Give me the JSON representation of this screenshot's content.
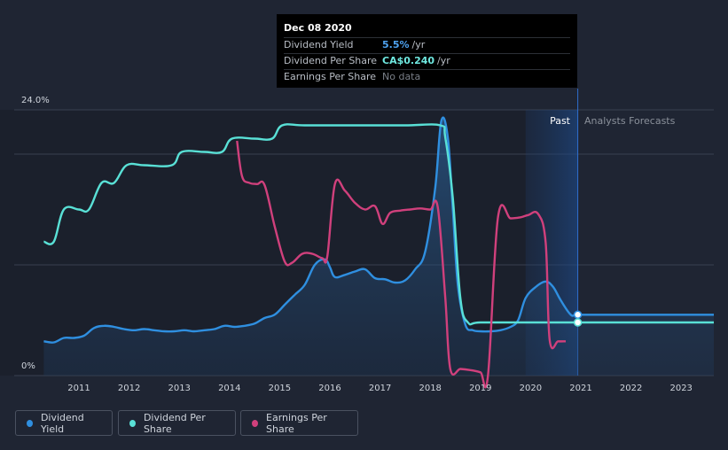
{
  "tooltip": {
    "date": "Dec 08 2020",
    "rows": [
      {
        "label": "Dividend Yield",
        "value": "5.5%",
        "unit": "/yr",
        "color": "#4fa3f0"
      },
      {
        "label": "Dividend Per Share",
        "value": "CA$0.240",
        "unit": "/yr",
        "color": "#6fe8e0"
      },
      {
        "label": "Earnings Per Share",
        "value": "No data",
        "unit": "",
        "color": "#7a7f88"
      }
    ]
  },
  "legend": [
    {
      "label": "Dividend Yield",
      "color": "#2f8fe0"
    },
    {
      "label": "Dividend Per Share",
      "color": "#59e0d6"
    },
    {
      "label": "Earnings Per Share",
      "color": "#d0407c"
    }
  ],
  "chart_data": {
    "type": "line",
    "ylim_label_top": "24.0%",
    "ylim_label_bottom": "0%",
    "ylim": [
      0,
      24
    ],
    "xlim": [
      2010.2,
      2023.65
    ],
    "x_ticks": [
      "2011",
      "2012",
      "2013",
      "2014",
      "2015",
      "2016",
      "2017",
      "2018",
      "2019",
      "2020",
      "2021",
      "2022",
      "2023"
    ],
    "past_label": "Past",
    "forecast_label": "Analysts Forecasts",
    "past_boundary": 2020.94,
    "past_shade_start": 2019.9,
    "grid": true,
    "legend_position": "bottom-left",
    "series": [
      {
        "name": "Dividend Yield",
        "color": "#2f8fe0",
        "area": true,
        "points": [
          [
            2010.3,
            3.1
          ],
          [
            2010.5,
            3.0
          ],
          [
            2010.7,
            3.4
          ],
          [
            2010.9,
            3.4
          ],
          [
            2011.1,
            3.6
          ],
          [
            2011.3,
            4.3
          ],
          [
            2011.5,
            4.5
          ],
          [
            2011.7,
            4.4
          ],
          [
            2011.9,
            4.2
          ],
          [
            2012.1,
            4.1
          ],
          [
            2012.3,
            4.2
          ],
          [
            2012.5,
            4.1
          ],
          [
            2012.7,
            4.0
          ],
          [
            2012.9,
            4.0
          ],
          [
            2013.1,
            4.1
          ],
          [
            2013.3,
            4.0
          ],
          [
            2013.5,
            4.1
          ],
          [
            2013.7,
            4.2
          ],
          [
            2013.9,
            4.5
          ],
          [
            2014.1,
            4.4
          ],
          [
            2014.3,
            4.5
          ],
          [
            2014.5,
            4.7
          ],
          [
            2014.7,
            5.2
          ],
          [
            2014.9,
            5.5
          ],
          [
            2015.1,
            6.4
          ],
          [
            2015.3,
            7.3
          ],
          [
            2015.5,
            8.2
          ],
          [
            2015.7,
            10.0
          ],
          [
            2015.9,
            10.5
          ],
          [
            2016.0,
            9.8
          ],
          [
            2016.1,
            8.9
          ],
          [
            2016.3,
            9.1
          ],
          [
            2016.5,
            9.4
          ],
          [
            2016.7,
            9.6
          ],
          [
            2016.9,
            8.8
          ],
          [
            2017.1,
            8.7
          ],
          [
            2017.3,
            8.4
          ],
          [
            2017.5,
            8.6
          ],
          [
            2017.7,
            9.6
          ],
          [
            2017.9,
            11.2
          ],
          [
            2018.1,
            17.0
          ],
          [
            2018.22,
            23.0
          ],
          [
            2018.35,
            21.5
          ],
          [
            2018.45,
            15.0
          ],
          [
            2018.55,
            8.2
          ],
          [
            2018.7,
            4.6
          ],
          [
            2018.85,
            4.1
          ],
          [
            2019.0,
            4.0
          ],
          [
            2019.2,
            4.0
          ],
          [
            2019.4,
            4.1
          ],
          [
            2019.6,
            4.4
          ],
          [
            2019.75,
            5.0
          ],
          [
            2019.9,
            7.0
          ],
          [
            2020.1,
            8.0
          ],
          [
            2020.3,
            8.5
          ],
          [
            2020.45,
            8.0
          ],
          [
            2020.6,
            6.8
          ],
          [
            2020.8,
            5.5
          ],
          [
            2020.94,
            5.5
          ],
          [
            2021.5,
            5.5
          ],
          [
            2022.5,
            5.5
          ],
          [
            2023.65,
            5.5
          ]
        ]
      },
      {
        "name": "Dividend Per Share",
        "color": "#59e0d6",
        "points": [
          [
            2010.3,
            12.1
          ],
          [
            2010.5,
            12.1
          ],
          [
            2010.7,
            15.0
          ],
          [
            2011.0,
            15.0
          ],
          [
            2011.2,
            15.0
          ],
          [
            2011.45,
            17.4
          ],
          [
            2011.7,
            17.4
          ],
          [
            2011.95,
            19.0
          ],
          [
            2012.3,
            19.0
          ],
          [
            2012.85,
            19.0
          ],
          [
            2013.05,
            20.2
          ],
          [
            2013.5,
            20.2
          ],
          [
            2013.85,
            20.2
          ],
          [
            2014.05,
            21.4
          ],
          [
            2014.5,
            21.4
          ],
          [
            2014.85,
            21.4
          ],
          [
            2015.05,
            22.6
          ],
          [
            2015.5,
            22.6
          ],
          [
            2016.5,
            22.6
          ],
          [
            2017.5,
            22.6
          ],
          [
            2018.2,
            22.6
          ],
          [
            2018.3,
            21.5
          ],
          [
            2018.45,
            16.0
          ],
          [
            2018.6,
            7.0
          ],
          [
            2018.75,
            4.8
          ],
          [
            2019.0,
            4.8
          ],
          [
            2020.0,
            4.8
          ],
          [
            2020.94,
            4.8
          ],
          [
            2022.0,
            4.8
          ],
          [
            2023.65,
            4.8
          ]
        ]
      },
      {
        "name": "Earnings Per Share",
        "color": "#d0407c",
        "points": [
          [
            2014.15,
            21.2
          ],
          [
            2014.25,
            18.0
          ],
          [
            2014.4,
            17.4
          ],
          [
            2014.55,
            17.3
          ],
          [
            2014.7,
            17.2
          ],
          [
            2014.9,
            13.5
          ],
          [
            2015.1,
            10.3
          ],
          [
            2015.25,
            10.2
          ],
          [
            2015.45,
            11.0
          ],
          [
            2015.65,
            11.0
          ],
          [
            2015.85,
            10.6
          ],
          [
            2015.95,
            10.8
          ],
          [
            2016.1,
            17.3
          ],
          [
            2016.3,
            16.7
          ],
          [
            2016.5,
            15.6
          ],
          [
            2016.7,
            15.0
          ],
          [
            2016.9,
            15.3
          ],
          [
            2017.05,
            13.7
          ],
          [
            2017.2,
            14.7
          ],
          [
            2017.4,
            14.9
          ],
          [
            2017.6,
            15.0
          ],
          [
            2017.8,
            15.1
          ],
          [
            2018.0,
            15.0
          ],
          [
            2018.15,
            15.2
          ],
          [
            2018.3,
            7.0
          ],
          [
            2018.4,
            0.6
          ],
          [
            2018.6,
            0.6
          ],
          [
            2018.8,
            0.5
          ],
          [
            2019.0,
            0.3
          ],
          [
            2019.15,
            0.0
          ],
          [
            2019.35,
            14.3
          ],
          [
            2019.6,
            14.2
          ],
          [
            2019.8,
            14.3
          ],
          [
            2019.95,
            14.5
          ],
          [
            2020.15,
            14.6
          ],
          [
            2020.3,
            12.0
          ],
          [
            2020.38,
            3.2
          ],
          [
            2020.55,
            3.1
          ],
          [
            2020.7,
            3.1
          ]
        ]
      }
    ],
    "markers": [
      {
        "series": "Dividend Yield",
        "x": 2020.94,
        "y": 5.5
      },
      {
        "series": "Dividend Per Share",
        "x": 2020.94,
        "y": 4.8
      }
    ]
  }
}
